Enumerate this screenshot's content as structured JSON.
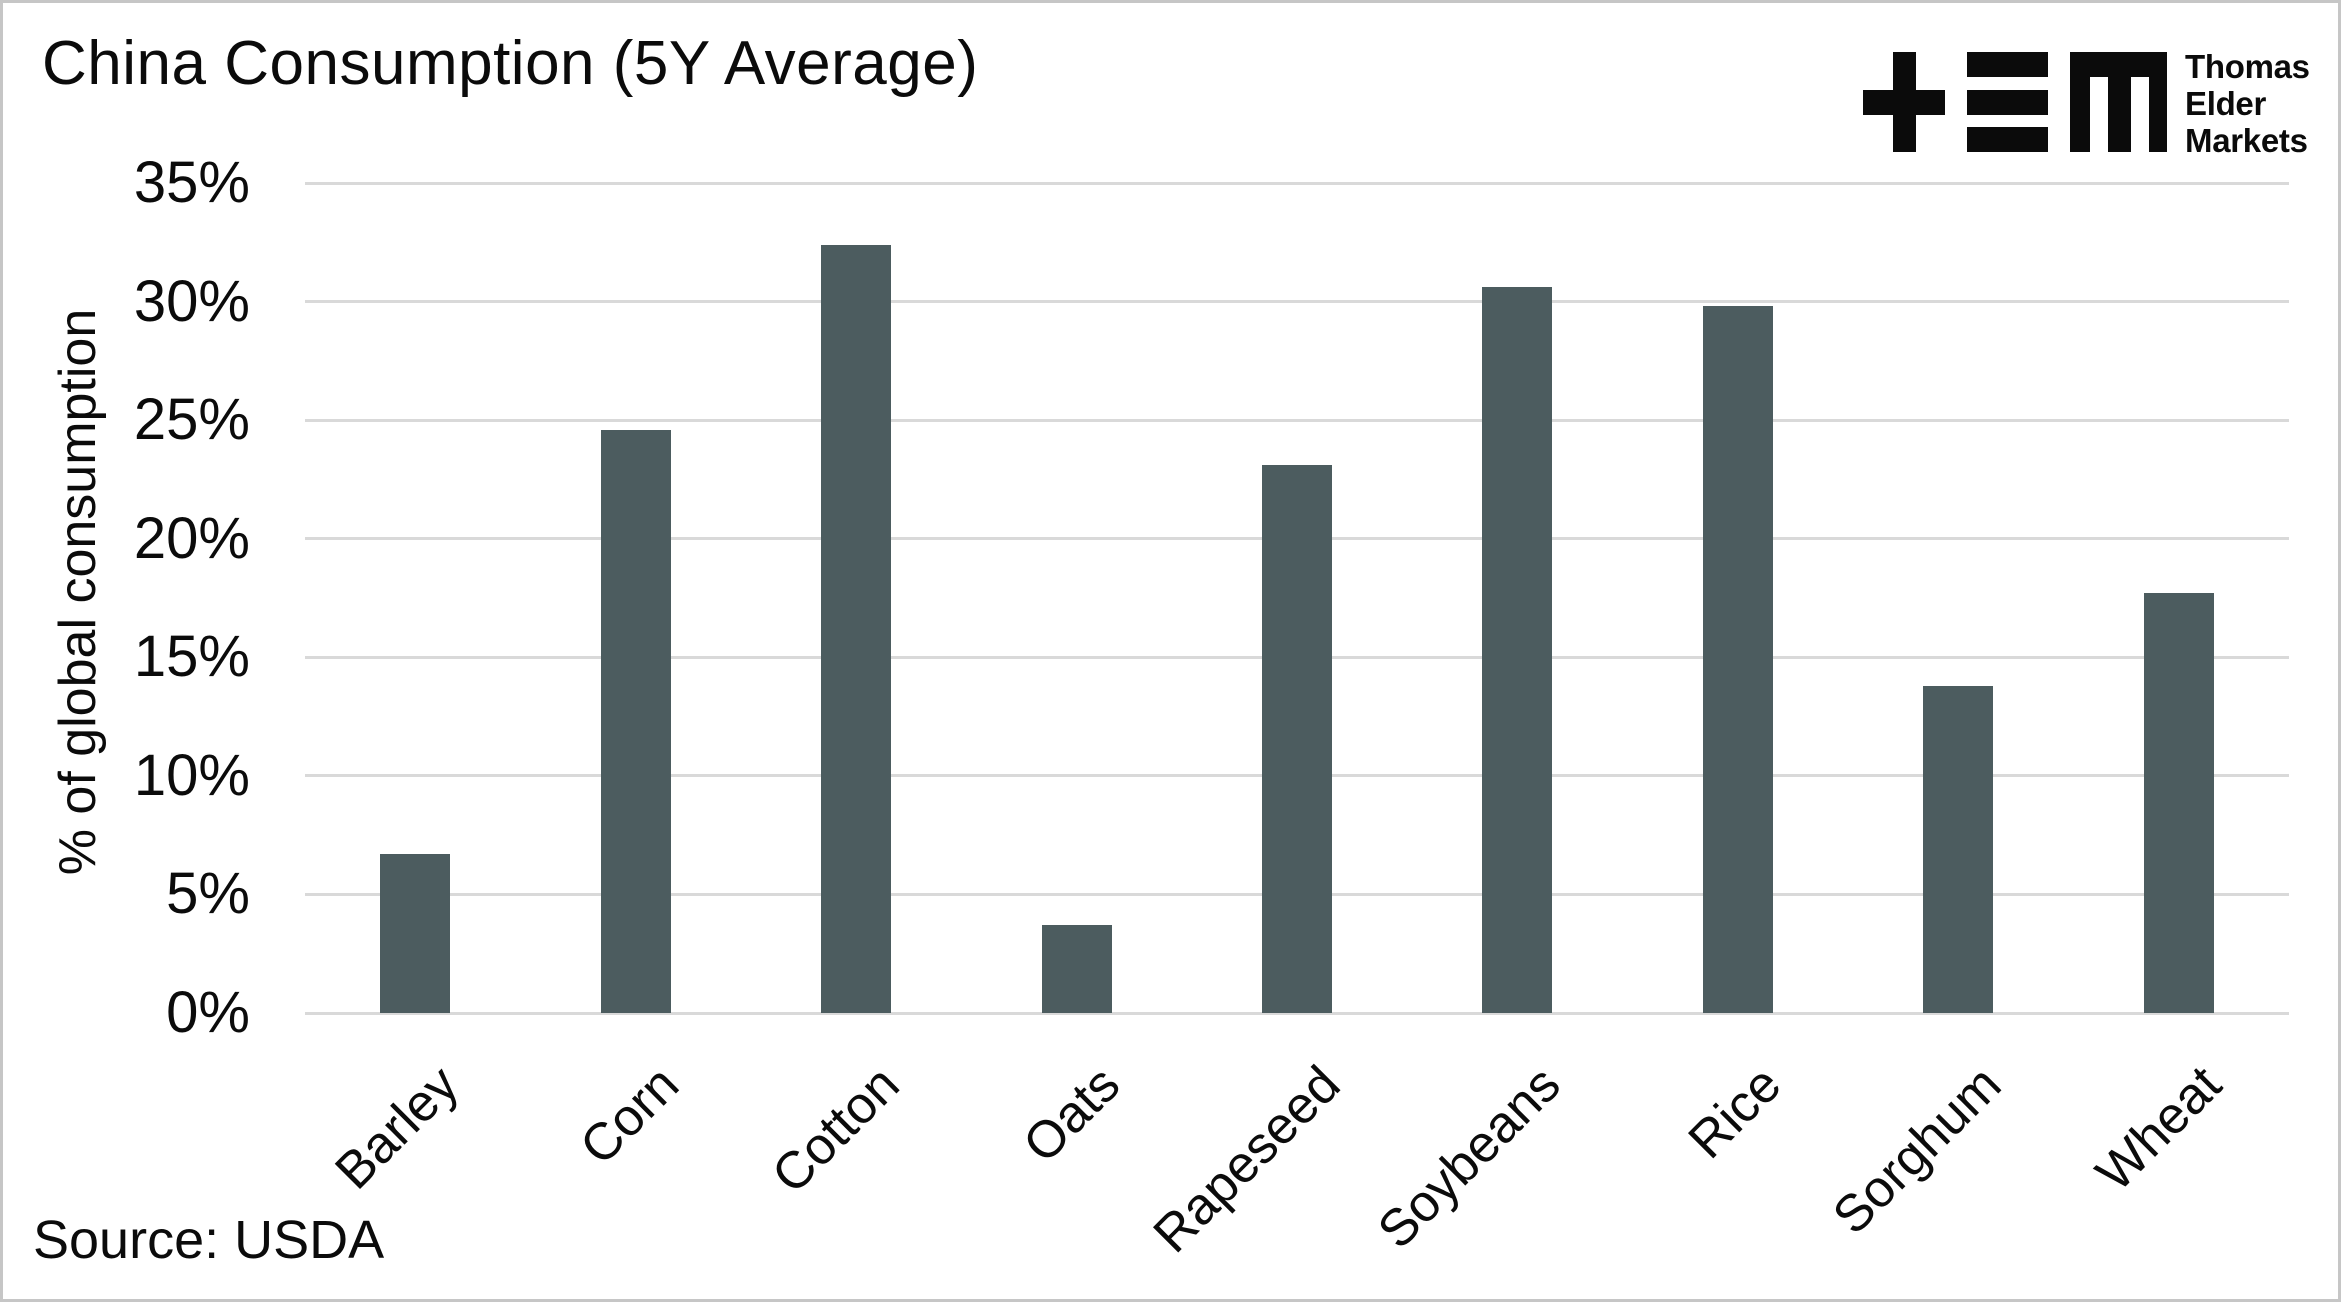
{
  "header": {
    "title": "China Consumption (5Y Average)"
  },
  "logo": {
    "name": "Thomas Elder Markets logo",
    "lines": [
      "Thomas",
      "Elder",
      "Markets"
    ]
  },
  "source": {
    "label": "Source: USDA"
  },
  "colors": {
    "bar": "#4c5c5f",
    "gridline": "#d9d9d9",
    "text": "#0b0b0b",
    "background": "#ffffff",
    "frame_border": "#c6c6c6"
  },
  "chart_data": {
    "type": "bar",
    "title": "China Consumption (5Y Average)",
    "categories": [
      "Barley",
      "Corn",
      "Cotton",
      "Oats",
      "Rapeseed",
      "Soybeans",
      "Rice",
      "Sorghum",
      "Wheat"
    ],
    "values": [
      6.7,
      24.6,
      32.4,
      3.7,
      23.1,
      30.6,
      29.8,
      13.8,
      17.7
    ],
    "unit": "%",
    "xlabel": "",
    "ylabel": "% of global consumption",
    "ylim": [
      0,
      35
    ],
    "ytick_step": 5,
    "ytick_labels": [
      "0%",
      "5%",
      "10%",
      "15%",
      "20%",
      "25%",
      "30%",
      "35%"
    ],
    "grid": true,
    "legend": null,
    "x_tick_rotation_deg": 45,
    "source": "Source: USDA"
  }
}
